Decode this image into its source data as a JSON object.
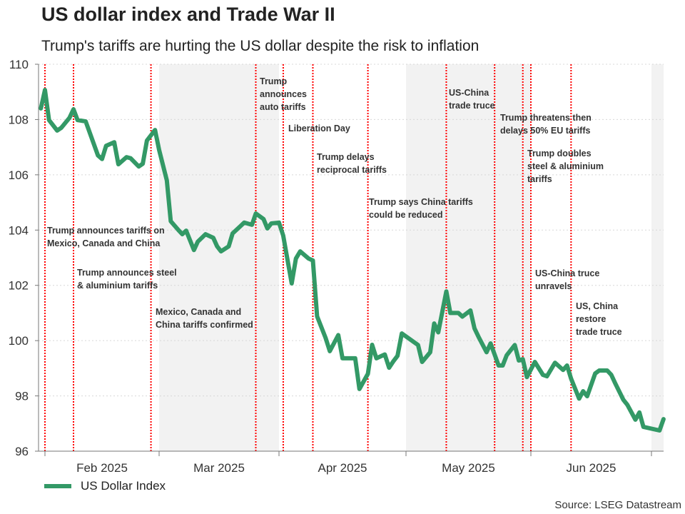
{
  "title": "US dollar index and Trade War II",
  "subtitle": "Trump's tariffs are hurting the US dollar despite the risk to inflation",
  "source": "Source: LSEG Datastream",
  "chart_data": {
    "type": "line",
    "title": "US dollar index and Trade War II",
    "xlabel": "",
    "ylabel": "",
    "ylim": [
      96,
      110
    ],
    "yticks": [
      "96",
      "98",
      "100",
      "102",
      "104",
      "106",
      "108",
      "110"
    ],
    "xticks": [
      "Feb 2025",
      "Mar 2025",
      "Apr 2025",
      "May 2025",
      "Jun 2025"
    ],
    "grid": true,
    "legend": "bottom-left",
    "colors": {
      "series": "#339966",
      "event_line": "#ff0000",
      "shade": "#f2f2f2"
    },
    "shaded_months": [
      "2025-03",
      "2025-05",
      "2025-07"
    ],
    "series": [
      {
        "name": "US Dollar Index",
        "x": [
          "2025-01-31",
          "2025-02-01",
          "2025-02-02",
          "2025-02-04",
          "2025-02-05",
          "2025-02-07",
          "2025-02-08",
          "2025-02-09",
          "2025-02-11",
          "2025-02-14",
          "2025-02-15",
          "2025-02-16",
          "2025-02-18",
          "2025-02-19",
          "2025-02-21",
          "2025-02-22",
          "2025-02-24",
          "2025-02-25",
          "2025-02-26",
          "2025-02-28",
          "2025-03-01",
          "2025-03-03",
          "2025-03-04",
          "2025-03-06",
          "2025-03-07",
          "2025-03-08",
          "2025-03-10",
          "2025-03-11",
          "2025-03-13",
          "2025-03-15",
          "2025-03-16",
          "2025-03-17",
          "2025-03-19",
          "2025-03-20",
          "2025-03-22",
          "2025-03-23",
          "2025-03-25",
          "2025-03-26",
          "2025-03-28",
          "2025-03-29",
          "2025-03-30",
          "2025-04-01",
          "2025-04-02",
          "2025-04-04",
          "2025-04-05",
          "2025-04-06",
          "2025-04-08",
          "2025-04-09",
          "2025-04-10",
          "2025-04-12",
          "2025-04-13",
          "2025-04-15",
          "2025-04-16",
          "2025-04-19",
          "2025-04-20",
          "2025-04-22",
          "2025-04-23",
          "2025-04-24",
          "2025-04-26",
          "2025-04-27",
          "2025-04-28",
          "2025-04-29",
          "2025-04-30",
          "2025-05-04",
          "2025-05-05",
          "2025-05-07",
          "2025-05-08",
          "2025-05-09",
          "2025-05-11",
          "2025-05-12",
          "2025-05-14",
          "2025-05-15",
          "2025-05-17",
          "2025-05-18",
          "2025-05-19",
          "2025-05-21",
          "2025-05-22",
          "2025-05-24",
          "2025-05-25",
          "2025-05-26",
          "2025-05-28",
          "2025-05-29",
          "2025-05-30",
          "2025-05-31",
          "2025-06-02",
          "2025-06-04",
          "2025-06-05",
          "2025-06-07",
          "2025-06-09",
          "2025-06-10",
          "2025-06-11",
          "2025-06-13",
          "2025-06-14",
          "2025-06-15",
          "2025-06-17",
          "2025-06-18",
          "2025-06-20",
          "2025-06-21",
          "2025-06-22",
          "2025-06-24",
          "2025-06-25",
          "2025-06-27",
          "2025-06-28",
          "2025-06-29",
          "2025-07-03",
          "2025-07-04"
        ],
        "values": [
          108.4,
          109.07,
          107.98,
          107.6,
          107.7,
          108.06,
          108.37,
          107.98,
          107.93,
          106.7,
          106.57,
          107.05,
          107.18,
          106.38,
          106.64,
          106.6,
          106.3,
          106.4,
          107.24,
          107.62,
          106.9,
          105.8,
          104.32,
          104.0,
          103.85,
          103.98,
          103.28,
          103.58,
          103.85,
          103.72,
          103.41,
          103.23,
          103.41,
          103.88,
          104.14,
          104.27,
          104.19,
          104.6,
          104.4,
          104.06,
          104.24,
          104.27,
          103.8,
          102.07,
          102.97,
          103.23,
          102.97,
          102.9,
          100.88,
          100.1,
          99.62,
          100.2,
          99.36,
          99.36,
          98.25,
          98.8,
          99.85,
          99.36,
          99.5,
          99.02,
          99.25,
          99.45,
          100.26,
          99.84,
          99.23,
          99.58,
          100.62,
          100.3,
          101.78,
          101.0,
          101.0,
          100.87,
          101.09,
          100.44,
          100.14,
          99.58,
          99.9,
          99.1,
          99.1,
          99.47,
          99.84,
          99.28,
          99.33,
          98.68,
          99.23,
          98.76,
          98.71,
          99.2,
          98.94,
          99.1,
          98.63,
          97.9,
          98.17,
          97.99,
          98.81,
          98.92,
          98.92,
          98.76,
          98.45,
          97.86,
          97.68,
          97.14,
          97.4,
          96.88,
          96.75,
          97.16
        ]
      }
    ],
    "annotations": [
      {
        "date": "2025-02-01",
        "lines": [
          "Trump announces tariffs on",
          "Mexico, Canada and China"
        ]
      },
      {
        "date": "2025-02-08",
        "lines": [
          "Trump announces steel",
          "& aluminium tariffs"
        ]
      },
      {
        "date": "2025-02-27",
        "lines": [
          "Mexico, Canada and",
          "China tariffs confirmed"
        ]
      },
      {
        "date": "2025-03-26",
        "lines": [
          "Trump",
          "announces",
          "auto tariffs"
        ]
      },
      {
        "date": "2025-04-02",
        "lines": [
          "Liberation Day"
        ]
      },
      {
        "date": "2025-04-09",
        "lines": [
          "Trump delays",
          "reciprocal tariffs"
        ]
      },
      {
        "date": "2025-04-22",
        "lines": [
          "Trump says China tariffs",
          "could be reduced"
        ]
      },
      {
        "date": "2025-05-11",
        "lines": [
          "US-China",
          "trade truce"
        ]
      },
      {
        "date": "2025-05-23",
        "lines": [
          "Trump threatens then",
          "delays 50% EU tariffs"
        ]
      },
      {
        "date": "2025-05-30",
        "lines": [
          "Trump doubles",
          "steel & aluminium",
          "tariffs"
        ]
      },
      {
        "date": "2025-06-01",
        "lines": [
          "US-China truce",
          "unravels"
        ]
      },
      {
        "date": "2025-06-11",
        "lines": [
          "US, China",
          "restore",
          "trade truce"
        ]
      }
    ]
  }
}
